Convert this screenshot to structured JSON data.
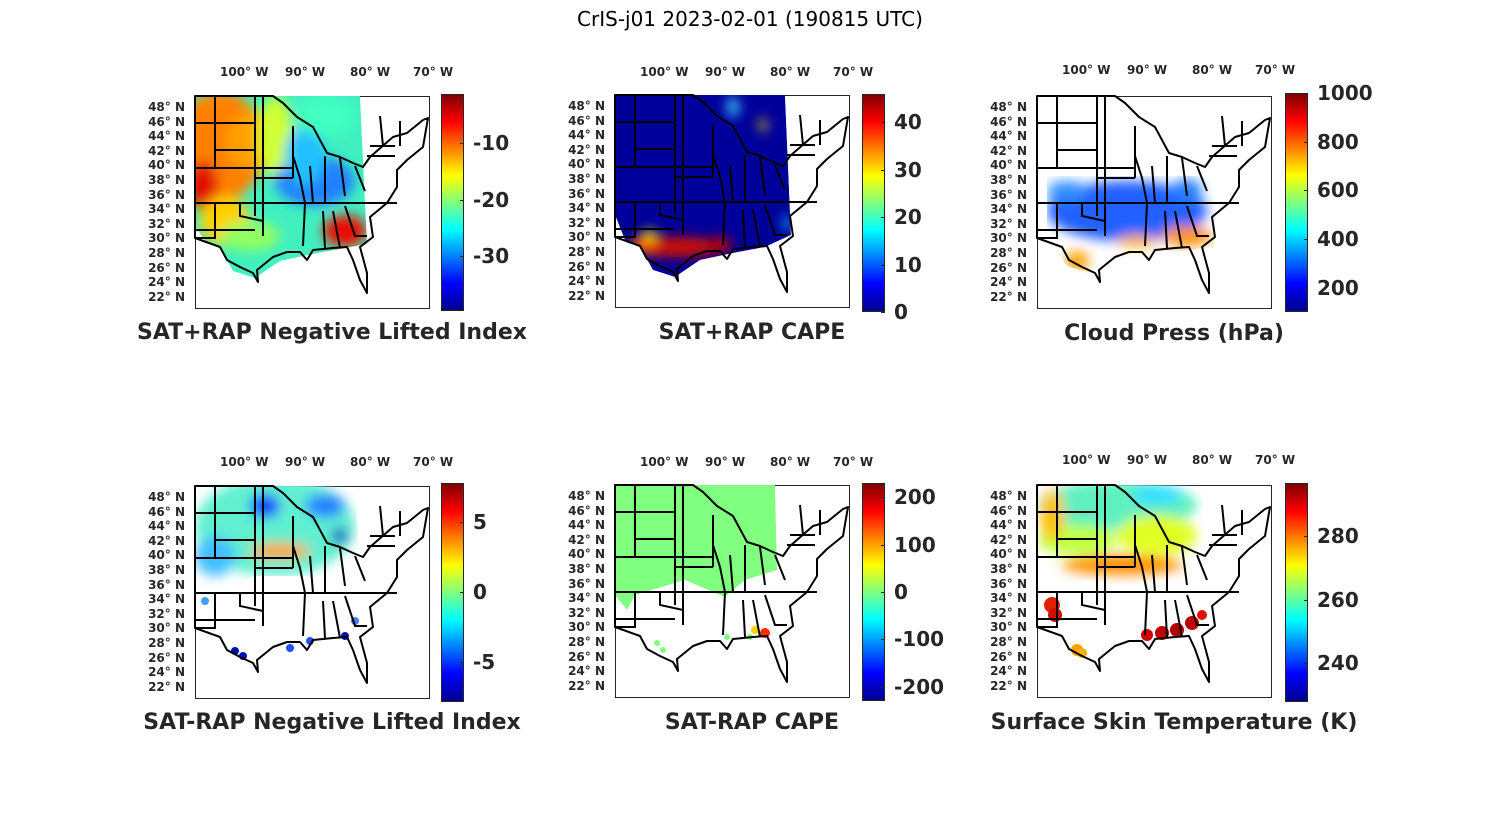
{
  "figure_title": "CrIS-j01 2023-02-01 (190815 UTC)",
  "lon_labels": [
    "100° W",
    "90° W",
    "80° W",
    "70° W"
  ],
  "lat_labels": [
    "48° N",
    "46° N",
    "44° N",
    "42° N",
    "40° N",
    "38° N",
    "36° N",
    "34° N",
    "32° N",
    "30° N",
    "28° N",
    "26° N",
    "24° N",
    "22° N"
  ],
  "colormap": "jet",
  "colors": {
    "text": "#262626",
    "jet_low": "#00008f",
    "jet_high": "#800000"
  },
  "chart_data": [
    {
      "type": "heatmap",
      "title": "SAT+RAP Negative Lifted Index",
      "clim": [
        -39.6,
        -1.4
      ],
      "cbar_ticks": [
        -10,
        -20,
        -30
      ],
      "cbar_tick_labels": [
        "-10",
        "-20",
        "-30"
      ]
    },
    {
      "type": "heatmap",
      "title": "SAT+RAP CAPE",
      "clim": [
        0,
        46
      ],
      "cbar_ticks": [
        40,
        30,
        20,
        10,
        0
      ],
      "cbar_tick_labels": [
        "40",
        "30",
        "20",
        "10",
        "0"
      ]
    },
    {
      "type": "heatmap",
      "title": "Cloud Press (hPa)",
      "clim": [
        100,
        1000
      ],
      "cbar_ticks": [
        1000,
        800,
        600,
        400,
        200
      ],
      "cbar_tick_labels": [
        "1000",
        "800",
        "600",
        "400",
        "200"
      ]
    },
    {
      "type": "heatmap",
      "title": "SAT-RAP Negative Lifted Index",
      "clim": [
        -7.9,
        7.8
      ],
      "cbar_ticks": [
        5,
        0,
        -5
      ],
      "cbar_tick_labels": [
        "5",
        "0",
        "-5"
      ]
    },
    {
      "type": "heatmap",
      "title": "SAT-RAP CAPE",
      "clim": [
        -230,
        230
      ],
      "cbar_ticks": [
        200,
        100,
        0,
        -100,
        -200
      ],
      "cbar_tick_labels": [
        "200",
        "100",
        "0",
        "-100",
        "-200"
      ]
    },
    {
      "type": "heatmap",
      "title": "Surface Skin Temperature (K)",
      "clim": [
        227.8,
        296.7
      ],
      "cbar_ticks": [
        280,
        260,
        240
      ],
      "cbar_tick_labels": [
        "280",
        "260",
        "240"
      ]
    }
  ]
}
